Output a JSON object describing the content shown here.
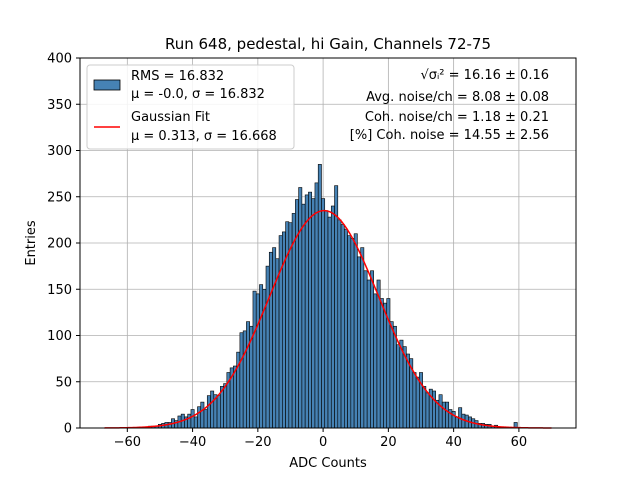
{
  "chart_data": {
    "type": "bar",
    "title": "Run 648, pedestal, hi Gain, Channels 72-75",
    "xlabel": "ADC Counts",
    "ylabel": "Entries",
    "xlim": [
      -74.5,
      77.5
    ],
    "ylim": [
      0,
      400
    ],
    "xticks": [
      -60,
      -40,
      -20,
      0,
      20,
      40,
      60
    ],
    "yticks": [
      0,
      50,
      100,
      150,
      200,
      250,
      300,
      350,
      400
    ],
    "grid": true,
    "bin_width": 1,
    "bar_color": "#4682b4",
    "fit_color": "#ff0000",
    "legend_position": "top-left",
    "legend": [
      {
        "label": "RMS = 16.832",
        "sublabel": "μ = -0.0, σ = 16.832",
        "kind": "bar"
      },
      {
        "label": "Gaussian Fit",
        "sublabel": "μ = 0.313, σ = 16.668",
        "kind": "line"
      }
    ],
    "annotations": [
      {
        "prefix": "√σᵢ²",
        "text": " = 16.16 ± 0.16"
      },
      {
        "text": "Avg. noise/ch = 8.08 ± 0.08"
      },
      {
        "text": "Coh. noise/ch = 1.18 ± 0.21"
      },
      {
        "text": "[%] Coh. noise = 14.55 ± 2.56"
      }
    ],
    "histogram": {
      "x": [
        -66,
        -65,
        -64,
        -63,
        -62,
        -61,
        -60,
        -59,
        -58,
        -57,
        -56,
        -55,
        -54,
        -53,
        -52,
        -51,
        -50,
        -49,
        -48,
        -47,
        -46,
        -45,
        -44,
        -43,
        -42,
        -41,
        -40,
        -39,
        -38,
        -37,
        -36,
        -35,
        -34,
        -33,
        -32,
        -31,
        -30,
        -29,
        -28,
        -27,
        -26,
        -25,
        -24,
        -23,
        -22,
        -21,
        -20,
        -19,
        -18,
        -17,
        -16,
        -15,
        -14,
        -13,
        -12,
        -11,
        -10,
        -9,
        -8,
        -7,
        -6,
        -5,
        -4,
        -3,
        -2,
        -1,
        0,
        1,
        2,
        3,
        4,
        5,
        6,
        7,
        8,
        9,
        10,
        11,
        12,
        13,
        14,
        15,
        16,
        17,
        18,
        19,
        20,
        21,
        22,
        23,
        24,
        25,
        26,
        27,
        28,
        29,
        30,
        31,
        32,
        33,
        34,
        35,
        36,
        37,
        38,
        39,
        40,
        41,
        42,
        43,
        44,
        45,
        46,
        47,
        48,
        49,
        50,
        51,
        52,
        53,
        54,
        55,
        56,
        57,
        58,
        59,
        60,
        61,
        62,
        63,
        64,
        65,
        66,
        67,
        68,
        69
      ],
      "values": [
        0,
        0,
        0,
        0,
        0,
        0,
        0,
        0,
        0,
        0,
        1,
        0,
        1,
        2,
        2,
        2,
        4,
        5,
        6,
        6,
        10,
        8,
        13,
        15,
        12,
        15,
        20,
        12,
        23,
        28,
        20,
        35,
        40,
        36,
        35,
        45,
        48,
        60,
        65,
        67,
        82,
        103,
        105,
        115,
        110,
        148,
        145,
        155,
        150,
        175,
        190,
        195,
        183,
        208,
        212,
        223,
        222,
        232,
        247,
        260,
        242,
        252,
        255,
        248,
        265,
        285,
        248,
        235,
        228,
        240,
        262,
        225,
        220,
        215,
        208,
        205,
        210,
        185,
        195,
        170,
        160,
        170,
        145,
        160,
        140,
        135,
        140,
        115,
        110,
        90,
        95,
        88,
        80,
        75,
        60,
        55,
        60,
        45,
        38,
        42,
        40,
        30,
        36,
        28,
        28,
        20,
        18,
        12,
        22,
        15,
        14,
        12,
        10,
        8,
        5,
        5,
        4,
        4,
        2,
        3,
        1,
        1,
        1,
        0,
        0,
        6,
        0,
        0,
        0,
        0,
        0,
        0,
        0,
        0,
        0,
        0
      ]
    },
    "fit": {
      "mu": 0.313,
      "sigma": 16.668,
      "amplitude": 235,
      "x_range": [
        -67,
        70
      ]
    }
  }
}
